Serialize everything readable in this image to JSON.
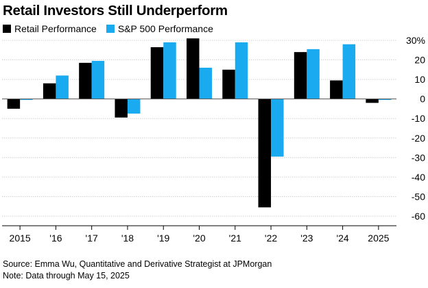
{
  "title": "Retail Investors Still Underperform",
  "legend": {
    "retail_label": "Retail Performance",
    "sp500_label": "S&P 500 Performance"
  },
  "colors": {
    "retail": "#000000",
    "sp500": "#1AAAF0",
    "grid": "#d0d0d0",
    "axis": "#000000"
  },
  "footer": {
    "source": "Source: Emma Wu, Quantitative and Derivative Strategist at JPMorgan",
    "note": "Note: Data through May 15, 2025"
  },
  "chart_data": {
    "type": "bar",
    "categories": [
      "2015",
      "'16",
      "'17",
      "'18",
      "'19",
      "'20",
      "'21",
      "'22",
      "'23",
      "'24",
      "2025"
    ],
    "series": [
      {
        "name": "Retail Performance",
        "values": [
          -5,
          8,
          18.5,
          -9.5,
          26.5,
          31,
          15,
          -55.5,
          24,
          9.5,
          -2
        ]
      },
      {
        "name": "S&P 500 Performance",
        "values": [
          -0.5,
          12,
          19.5,
          -7.5,
          29,
          16,
          29,
          -29.5,
          25.5,
          28,
          -0.5
        ]
      }
    ],
    "ylim": [
      -60,
      30
    ],
    "yticks": [
      30,
      20,
      10,
      0,
      -10,
      -20,
      -30,
      -40,
      -50,
      -60
    ],
    "ytick_labels": [
      "30%",
      "20",
      "10",
      "0",
      "-10",
      "-20",
      "-30",
      "-40",
      "-50",
      "-60"
    ],
    "y_axis_side": "right",
    "grid": true,
    "legend_position": "top-left"
  }
}
